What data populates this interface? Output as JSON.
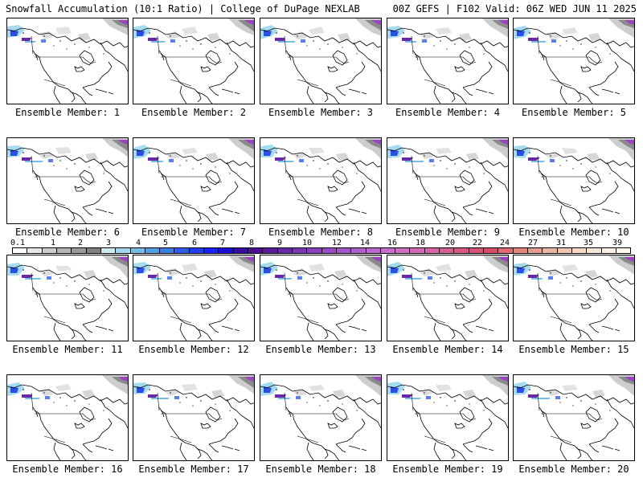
{
  "header": {
    "left_title": "Snowfall Accumulation (10:1 Ratio) | College of DuPage NEXLAB",
    "right_title": "00Z GEFS | F102 Valid: 06Z WED JUN 11 2025"
  },
  "panels": [
    {
      "label": "Ensemble Member: 1"
    },
    {
      "label": "Ensemble Member: 2"
    },
    {
      "label": "Ensemble Member: 3"
    },
    {
      "label": "Ensemble Member: 4"
    },
    {
      "label": "Ensemble Member: 5"
    },
    {
      "label": "Ensemble Member: 6"
    },
    {
      "label": "Ensemble Member: 7"
    },
    {
      "label": "Ensemble Member: 8"
    },
    {
      "label": "Ensemble Member: 9"
    },
    {
      "label": "Ensemble Member: 10"
    },
    {
      "label": "Ensemble Member: 11"
    },
    {
      "label": "Ensemble Member: 12"
    },
    {
      "label": "Ensemble Member: 13"
    },
    {
      "label": "Ensemble Member: 14"
    },
    {
      "label": "Ensemble Member: 15"
    },
    {
      "label": "Ensemble Member: 16"
    },
    {
      "label": "Ensemble Member: 17"
    },
    {
      "label": "Ensemble Member: 18"
    },
    {
      "label": "Ensemble Member: 19"
    },
    {
      "label": "Ensemble Member: 20"
    }
  ],
  "colorbar": {
    "ticks": [
      "0.1",
      "1",
      "2",
      "3",
      "4",
      "5",
      "6",
      "7",
      "8",
      "9",
      "10",
      "12",
      "14",
      "16",
      "18",
      "20",
      "22",
      "24",
      "27",
      "31",
      "35",
      "39"
    ],
    "colors": [
      "#ffffff",
      "#e6e6e6",
      "#cccccc",
      "#b3b3b3",
      "#9a9a9a",
      "#808080",
      "#c9ecf5",
      "#9fd7ec",
      "#74bde6",
      "#4fa0e0",
      "#3a7fe0",
      "#2a5ee6",
      "#1e3ff0",
      "#1a20f5",
      "#1a0bd9",
      "#3a0a9f",
      "#4a1090",
      "#5a1a9a",
      "#6a28a8",
      "#7a35b4",
      "#8a40be",
      "#9a4ac6",
      "#a654cc",
      "#b25ed0",
      "#be66d2",
      "#ca6ccf",
      "#d070c4",
      "#d46ab4",
      "#d864a4",
      "#d85e94",
      "#d85884",
      "#d85274",
      "#d84c68",
      "#e06a70",
      "#e48480",
      "#e89c90",
      "#eeb4a2",
      "#f2c8b2",
      "#f6dac4",
      "#f8e6d4",
      "#fbf0e4",
      "#fef8f0"
    ]
  }
}
